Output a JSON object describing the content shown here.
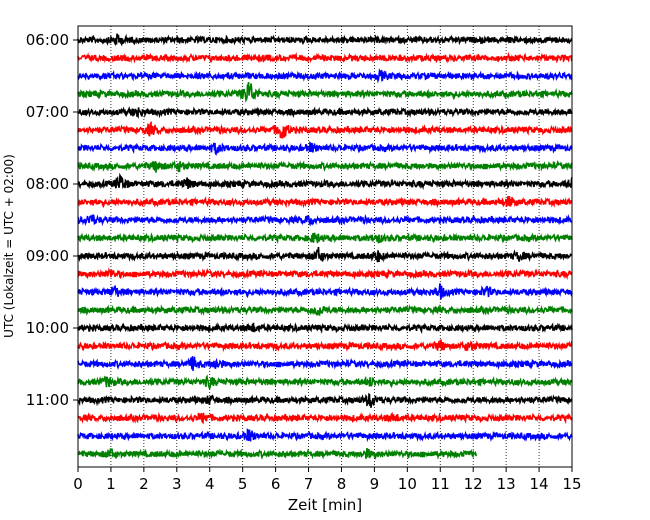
{
  "chart_data": {
    "type": "line",
    "title": "",
    "xlabel": "Zeit  [min]",
    "ylabel": "UTC (Lokalzeit = UTC + 02:00)",
    "xlim": [
      0,
      15
    ],
    "x_ticks": [
      "0",
      "1",
      "2",
      "3",
      "4",
      "5",
      "6",
      "7",
      "8",
      "9",
      "10",
      "11",
      "12",
      "13",
      "14",
      "15"
    ],
    "y_ticks": [
      "06:00",
      "07:00",
      "08:00",
      "09:00",
      "10:00",
      "11:00"
    ],
    "grid": "vertical dotted",
    "line_colors": [
      "#000000",
      "#ff0000",
      "#0000ff",
      "#008000"
    ],
    "start_time": "06:00",
    "end_time": "11:45",
    "minutes_per_line": 15,
    "last_line_end_minute": 12.1,
    "series": [
      {
        "label": "06:00",
        "color": "#000000",
        "x_end": 15,
        "events": [
          [
            1.2,
            0.5
          ]
        ]
      },
      {
        "label": "06:15",
        "color": "#ff0000",
        "x_end": 15,
        "events": []
      },
      {
        "label": "06:30",
        "color": "#0000ff",
        "x_end": 15,
        "events": [
          [
            9.2,
            0.4
          ]
        ]
      },
      {
        "label": "06:45",
        "color": "#008000",
        "x_end": 15,
        "events": [
          [
            5.2,
            1.6
          ]
        ]
      },
      {
        "label": "07:00",
        "color": "#000000",
        "x_end": 15,
        "events": [
          [
            1.8,
            0.5
          ]
        ]
      },
      {
        "label": "07:15",
        "color": "#ff0000",
        "x_end": 15,
        "events": [
          [
            2.2,
            0.6
          ],
          [
            6.2,
            1.2
          ]
        ]
      },
      {
        "label": "07:30",
        "color": "#0000ff",
        "x_end": 15,
        "events": [
          [
            4.2,
            0.5
          ],
          [
            7.1,
            0.4
          ]
        ]
      },
      {
        "label": "07:45",
        "color": "#008000",
        "x_end": 15,
        "events": [
          [
            2.4,
            0.6
          ],
          [
            3.1,
            0.5
          ]
        ]
      },
      {
        "label": "08:00",
        "color": "#000000",
        "x_end": 15,
        "events": [
          [
            1.3,
            0.9
          ],
          [
            3.3,
            0.6
          ],
          [
            15.0,
            0.5
          ]
        ]
      },
      {
        "label": "08:15",
        "color": "#ff0000",
        "x_end": 15,
        "events": [
          [
            13.1,
            0.5
          ]
        ]
      },
      {
        "label": "08:30",
        "color": "#0000ff",
        "x_end": 15,
        "events": [
          [
            0.4,
            0.6
          ],
          [
            7.0,
            0.4
          ]
        ]
      },
      {
        "label": "08:45",
        "color": "#008000",
        "x_end": 15,
        "events": [
          [
            7.2,
            0.5
          ],
          [
            9.1,
            0.4
          ]
        ]
      },
      {
        "label": "09:00",
        "color": "#000000",
        "x_end": 15,
        "events": [
          [
            7.3,
            0.8
          ],
          [
            9.1,
            0.5
          ],
          [
            13.4,
            0.4
          ]
        ]
      },
      {
        "label": "09:15",
        "color": "#ff0000",
        "x_end": 15,
        "events": [
          [
            1.0,
            0.4
          ]
        ]
      },
      {
        "label": "09:30",
        "color": "#0000ff",
        "x_end": 15,
        "events": [
          [
            1.1,
            0.6
          ],
          [
            11.0,
            0.7
          ],
          [
            12.4,
            0.5
          ]
        ]
      },
      {
        "label": "09:45",
        "color": "#008000",
        "x_end": 15,
        "events": [
          [
            7.3,
            0.6
          ]
        ]
      },
      {
        "label": "10:00",
        "color": "#000000",
        "x_end": 15,
        "events": [
          [
            5.3,
            0.4
          ]
        ]
      },
      {
        "label": "10:15",
        "color": "#ff0000",
        "x_end": 15,
        "events": [
          [
            11.0,
            0.5
          ],
          [
            11.9,
            0.5
          ]
        ]
      },
      {
        "label": "10:30",
        "color": "#0000ff",
        "x_end": 15,
        "events": [
          [
            3.5,
            0.7
          ],
          [
            4.2,
            0.5
          ]
        ]
      },
      {
        "label": "10:45",
        "color": "#008000",
        "x_end": 15,
        "events": [
          [
            0.9,
            0.5
          ],
          [
            4.0,
            0.5
          ],
          [
            8.9,
            0.4
          ]
        ]
      },
      {
        "label": "11:00",
        "color": "#000000",
        "x_end": 15,
        "events": [
          [
            8.9,
            0.8
          ],
          [
            4.0,
            0.4
          ]
        ]
      },
      {
        "label": "11:15",
        "color": "#ff0000",
        "x_end": 15,
        "events": [
          [
            3.8,
            0.5
          ],
          [
            9.6,
            0.4
          ]
        ]
      },
      {
        "label": "11:30",
        "color": "#0000ff",
        "x_end": 15,
        "events": [
          [
            5.2,
            0.6
          ]
        ]
      },
      {
        "label": "11:45",
        "color": "#008000",
        "x_end": 12.1,
        "events": [
          [
            1.0,
            0.5
          ],
          [
            8.8,
            0.4
          ]
        ]
      }
    ]
  }
}
